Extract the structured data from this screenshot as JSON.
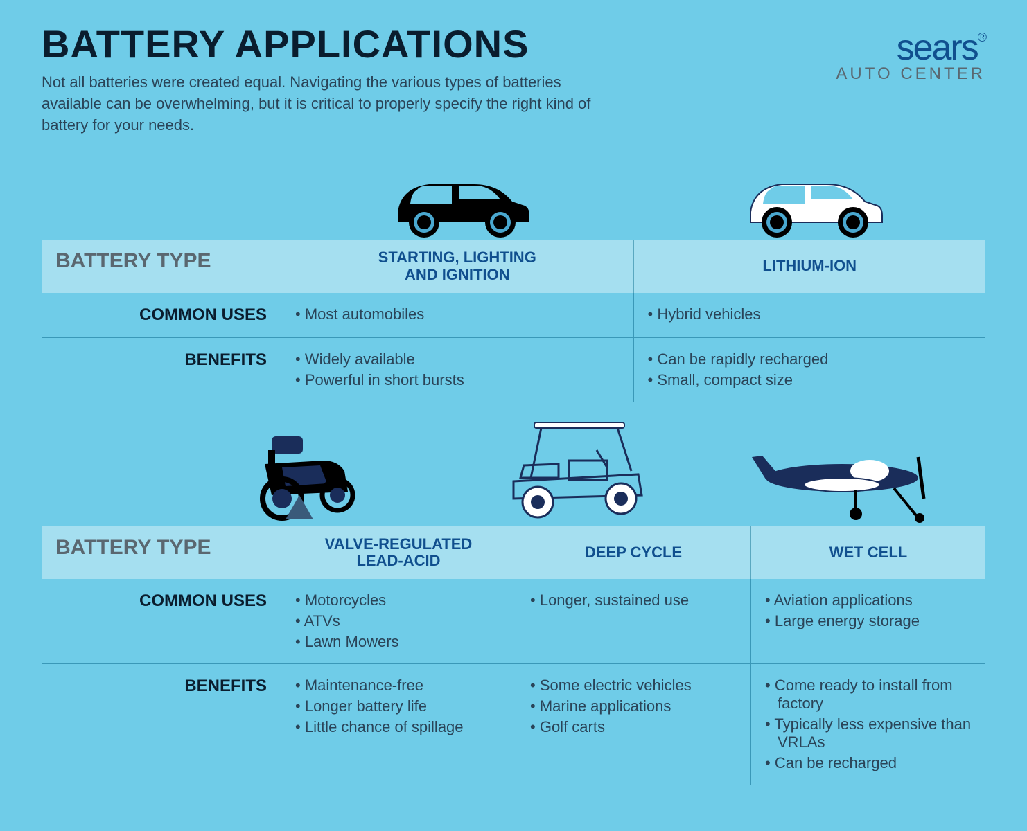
{
  "colors": {
    "page_bg": "#6fcce8",
    "band_bg": "#a5dff0",
    "divider": "#3a98b8",
    "title_text": "#0a1d2e",
    "body_text": "#2a4458",
    "label_text": "#5a6770",
    "brand_blue": "#104f8e",
    "navy": "#1a2d5a",
    "black": "#000000",
    "white": "#ffffff"
  },
  "header": {
    "title": "BATTERY APPLICATIONS",
    "subtitle": "Not all batteries were created equal. Navigating the various types of batteries available can be overwhelming, but it is critical to properly specify the right kind of battery for your needs."
  },
  "logo": {
    "main": "sears",
    "sub": "AUTO CENTER",
    "reg": "®"
  },
  "labels": {
    "battery_type": "BATTERY TYPE",
    "common_uses": "COMMON USES",
    "benefits": "BENEFITS"
  },
  "section1": {
    "types": [
      {
        "name": "STARTING, LIGHTING\nAND IGNITION",
        "icon": "car-black"
      },
      {
        "name": "LITHIUM-ION",
        "icon": "car-white"
      }
    ],
    "uses": [
      [
        "Most automobiles"
      ],
      [
        "Hybrid vehicles"
      ]
    ],
    "benefits": [
      [
        "Widely available",
        "Powerful in short bursts"
      ],
      [
        "Can be rapidly recharged",
        "Small, compact size"
      ]
    ]
  },
  "section2": {
    "types": [
      {
        "name": "VALVE-REGULATED\nLEAD-ACID",
        "icon": "mower"
      },
      {
        "name": "DEEP CYCLE",
        "icon": "golf-cart"
      },
      {
        "name": "WET CELL",
        "icon": "plane"
      }
    ],
    "uses": [
      [
        "Motorcycles",
        "ATVs",
        "Lawn Mowers"
      ],
      [
        "Longer, sustained use"
      ],
      [
        "Aviation applications",
        "Large energy storage"
      ]
    ],
    "benefits": [
      [
        "Maintenance-free",
        "Longer battery life",
        "Little chance of spillage"
      ],
      [
        "Some electric vehicles",
        "Marine applications",
        "Golf carts"
      ],
      [
        "Come ready to install from factory",
        "Typically less expensive than VRLAs",
        "Can be recharged"
      ]
    ]
  }
}
